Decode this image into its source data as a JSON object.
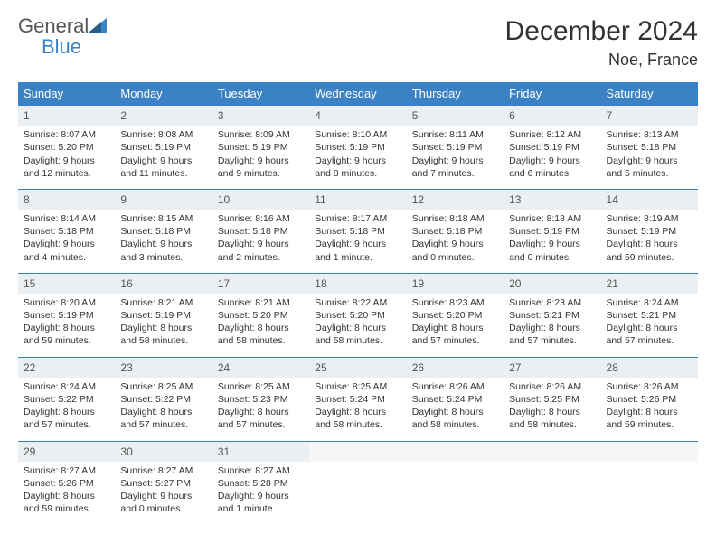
{
  "logo": {
    "general": "General",
    "blue": "Blue"
  },
  "title": "December 2024",
  "location": "Noe, France",
  "colors": {
    "header_bg": "#3b82c4",
    "header_text": "#ffffff",
    "daynum_bg": "#eceff1",
    "border": "#3b82c4",
    "text": "#333333",
    "logo_accent": "#3b82c4",
    "logo_gray": "#555555"
  },
  "weekdays": [
    "Sunday",
    "Monday",
    "Tuesday",
    "Wednesday",
    "Thursday",
    "Friday",
    "Saturday"
  ],
  "weeks": [
    [
      {
        "day": "1",
        "sunrise": "Sunrise: 8:07 AM",
        "sunset": "Sunset: 5:20 PM",
        "daylight": "Daylight: 9 hours and 12 minutes."
      },
      {
        "day": "2",
        "sunrise": "Sunrise: 8:08 AM",
        "sunset": "Sunset: 5:19 PM",
        "daylight": "Daylight: 9 hours and 11 minutes."
      },
      {
        "day": "3",
        "sunrise": "Sunrise: 8:09 AM",
        "sunset": "Sunset: 5:19 PM",
        "daylight": "Daylight: 9 hours and 9 minutes."
      },
      {
        "day": "4",
        "sunrise": "Sunrise: 8:10 AM",
        "sunset": "Sunset: 5:19 PM",
        "daylight": "Daylight: 9 hours and 8 minutes."
      },
      {
        "day": "5",
        "sunrise": "Sunrise: 8:11 AM",
        "sunset": "Sunset: 5:19 PM",
        "daylight": "Daylight: 9 hours and 7 minutes."
      },
      {
        "day": "6",
        "sunrise": "Sunrise: 8:12 AM",
        "sunset": "Sunset: 5:19 PM",
        "daylight": "Daylight: 9 hours and 6 minutes."
      },
      {
        "day": "7",
        "sunrise": "Sunrise: 8:13 AM",
        "sunset": "Sunset: 5:18 PM",
        "daylight": "Daylight: 9 hours and 5 minutes."
      }
    ],
    [
      {
        "day": "8",
        "sunrise": "Sunrise: 8:14 AM",
        "sunset": "Sunset: 5:18 PM",
        "daylight": "Daylight: 9 hours and 4 minutes."
      },
      {
        "day": "9",
        "sunrise": "Sunrise: 8:15 AM",
        "sunset": "Sunset: 5:18 PM",
        "daylight": "Daylight: 9 hours and 3 minutes."
      },
      {
        "day": "10",
        "sunrise": "Sunrise: 8:16 AM",
        "sunset": "Sunset: 5:18 PM",
        "daylight": "Daylight: 9 hours and 2 minutes."
      },
      {
        "day": "11",
        "sunrise": "Sunrise: 8:17 AM",
        "sunset": "Sunset: 5:18 PM",
        "daylight": "Daylight: 9 hours and 1 minute."
      },
      {
        "day": "12",
        "sunrise": "Sunrise: 8:18 AM",
        "sunset": "Sunset: 5:18 PM",
        "daylight": "Daylight: 9 hours and 0 minutes."
      },
      {
        "day": "13",
        "sunrise": "Sunrise: 8:18 AM",
        "sunset": "Sunset: 5:19 PM",
        "daylight": "Daylight: 9 hours and 0 minutes."
      },
      {
        "day": "14",
        "sunrise": "Sunrise: 8:19 AM",
        "sunset": "Sunset: 5:19 PM",
        "daylight": "Daylight: 8 hours and 59 minutes."
      }
    ],
    [
      {
        "day": "15",
        "sunrise": "Sunrise: 8:20 AM",
        "sunset": "Sunset: 5:19 PM",
        "daylight": "Daylight: 8 hours and 59 minutes."
      },
      {
        "day": "16",
        "sunrise": "Sunrise: 8:21 AM",
        "sunset": "Sunset: 5:19 PM",
        "daylight": "Daylight: 8 hours and 58 minutes."
      },
      {
        "day": "17",
        "sunrise": "Sunrise: 8:21 AM",
        "sunset": "Sunset: 5:20 PM",
        "daylight": "Daylight: 8 hours and 58 minutes."
      },
      {
        "day": "18",
        "sunrise": "Sunrise: 8:22 AM",
        "sunset": "Sunset: 5:20 PM",
        "daylight": "Daylight: 8 hours and 58 minutes."
      },
      {
        "day": "19",
        "sunrise": "Sunrise: 8:23 AM",
        "sunset": "Sunset: 5:20 PM",
        "daylight": "Daylight: 8 hours and 57 minutes."
      },
      {
        "day": "20",
        "sunrise": "Sunrise: 8:23 AM",
        "sunset": "Sunset: 5:21 PM",
        "daylight": "Daylight: 8 hours and 57 minutes."
      },
      {
        "day": "21",
        "sunrise": "Sunrise: 8:24 AM",
        "sunset": "Sunset: 5:21 PM",
        "daylight": "Daylight: 8 hours and 57 minutes."
      }
    ],
    [
      {
        "day": "22",
        "sunrise": "Sunrise: 8:24 AM",
        "sunset": "Sunset: 5:22 PM",
        "daylight": "Daylight: 8 hours and 57 minutes."
      },
      {
        "day": "23",
        "sunrise": "Sunrise: 8:25 AM",
        "sunset": "Sunset: 5:22 PM",
        "daylight": "Daylight: 8 hours and 57 minutes."
      },
      {
        "day": "24",
        "sunrise": "Sunrise: 8:25 AM",
        "sunset": "Sunset: 5:23 PM",
        "daylight": "Daylight: 8 hours and 57 minutes."
      },
      {
        "day": "25",
        "sunrise": "Sunrise: 8:25 AM",
        "sunset": "Sunset: 5:24 PM",
        "daylight": "Daylight: 8 hours and 58 minutes."
      },
      {
        "day": "26",
        "sunrise": "Sunrise: 8:26 AM",
        "sunset": "Sunset: 5:24 PM",
        "daylight": "Daylight: 8 hours and 58 minutes."
      },
      {
        "day": "27",
        "sunrise": "Sunrise: 8:26 AM",
        "sunset": "Sunset: 5:25 PM",
        "daylight": "Daylight: 8 hours and 58 minutes."
      },
      {
        "day": "28",
        "sunrise": "Sunrise: 8:26 AM",
        "sunset": "Sunset: 5:26 PM",
        "daylight": "Daylight: 8 hours and 59 minutes."
      }
    ],
    [
      {
        "day": "29",
        "sunrise": "Sunrise: 8:27 AM",
        "sunset": "Sunset: 5:26 PM",
        "daylight": "Daylight: 8 hours and 59 minutes."
      },
      {
        "day": "30",
        "sunrise": "Sunrise: 8:27 AM",
        "sunset": "Sunset: 5:27 PM",
        "daylight": "Daylight: 9 hours and 0 minutes."
      },
      {
        "day": "31",
        "sunrise": "Sunrise: 8:27 AM",
        "sunset": "Sunset: 5:28 PM",
        "daylight": "Daylight: 9 hours and 1 minute."
      },
      null,
      null,
      null,
      null
    ]
  ]
}
